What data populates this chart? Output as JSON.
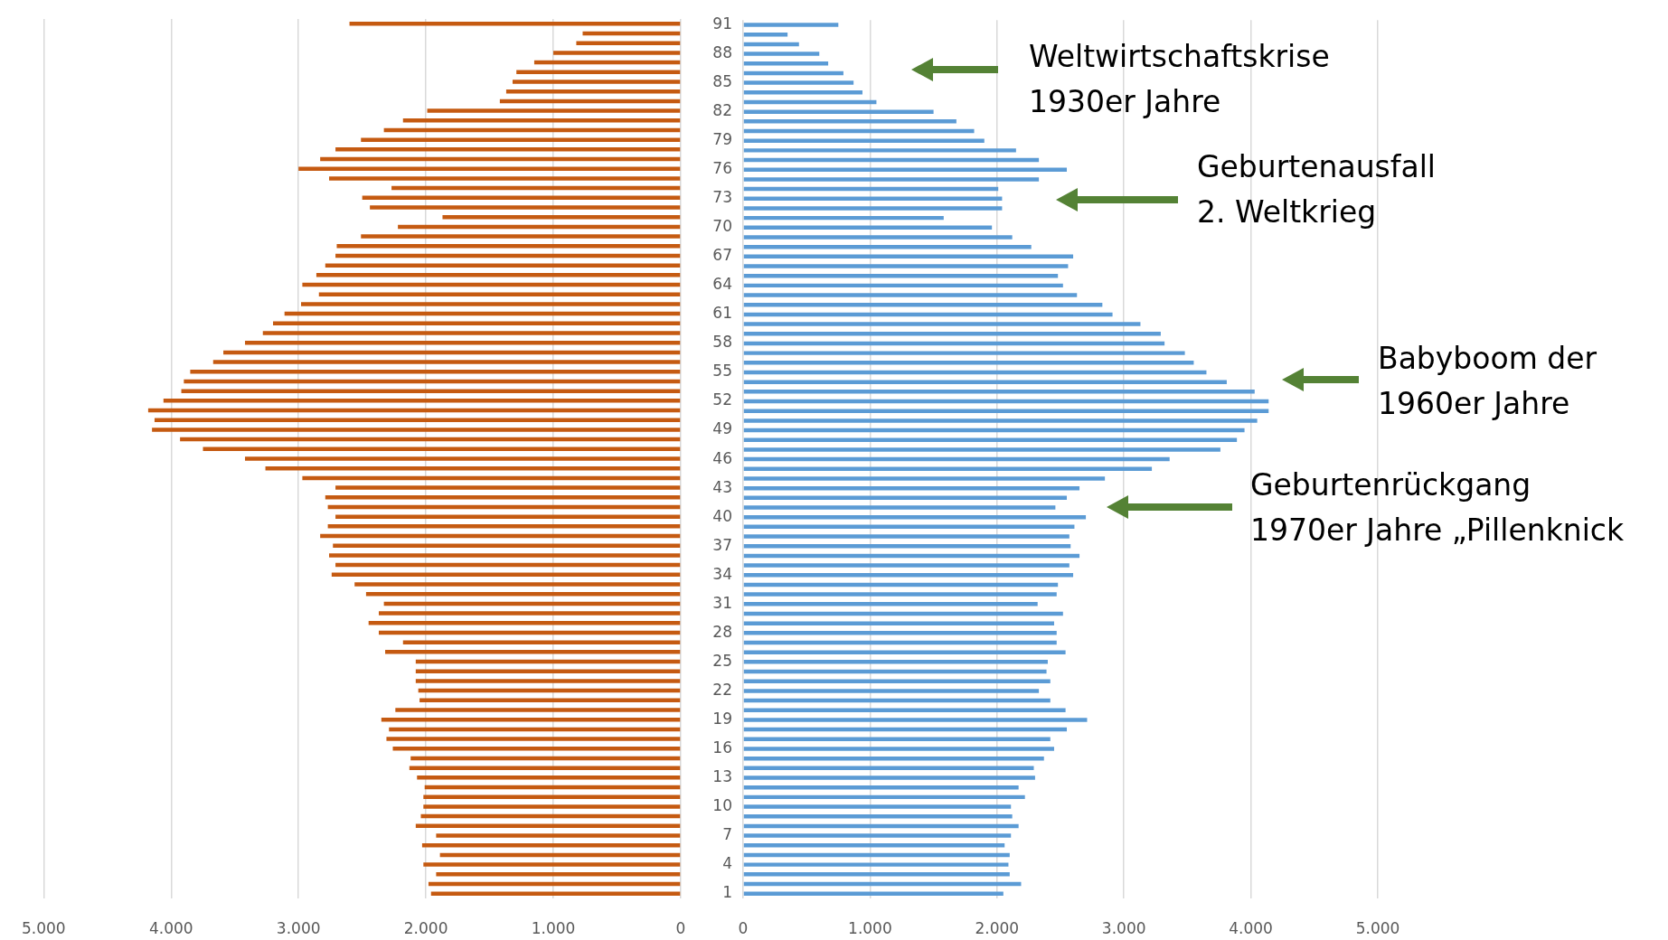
{
  "chart_data": [
    {
      "type": "bar",
      "orientation": "horizontal",
      "tick_labels": "x",
      "grid": "x",
      "color": "#c55a11",
      "categories": [
        "91",
        null,
        null,
        "88",
        null,
        null,
        "85",
        null,
        null,
        "82",
        null,
        null,
        "79",
        null,
        null,
        "76",
        null,
        null,
        "73",
        null,
        null,
        "70",
        null,
        null,
        "67",
        null,
        null,
        "64",
        null,
        null,
        "61",
        null,
        null,
        "58",
        null,
        null,
        "55",
        null,
        null,
        "52",
        null,
        null,
        "49",
        null,
        null,
        "46",
        null,
        null,
        "43",
        null,
        null,
        "40",
        null,
        null,
        "37",
        null,
        null,
        "34",
        null,
        null,
        "31",
        null,
        null,
        "28",
        null,
        null,
        "25",
        null,
        null,
        "22",
        null,
        null,
        "19",
        null,
        null,
        "16",
        null,
        null,
        "13",
        null,
        null,
        "10",
        null,
        null,
        "7",
        null,
        null,
        "4",
        null,
        null,
        "1"
      ],
      "values": [
        2600,
        770,
        820,
        1000,
        1150,
        1290,
        1320,
        1370,
        1420,
        1990,
        2180,
        2330,
        2510,
        2710,
        2830,
        3000,
        2760,
        2270,
        2500,
        2440,
        1870,
        2220,
        2510,
        2700,
        2710,
        2790,
        2860,
        2970,
        2840,
        2980,
        3110,
        3200,
        3280,
        3420,
        3590,
        3670,
        3850,
        3900,
        3920,
        4060,
        4180,
        4130,
        4150,
        3930,
        3750,
        3420,
        3260,
        2970,
        2710,
        2790,
        2770,
        2710,
        2770,
        2830,
        2730,
        2760,
        2710,
        2740,
        2560,
        2470,
        2330,
        2370,
        2450,
        2370,
        2180,
        2320,
        2080,
        2080,
        2080,
        2060,
        2050,
        2240,
        2350,
        2290,
        2310,
        2260,
        2120,
        2130,
        2070,
        2010,
        2020,
        2020,
        2040,
        2080,
        1920,
        2030,
        1890,
        2020,
        1920,
        1980,
        1960
      ],
      "xlim": [
        5000,
        0
      ],
      "xticks": [
        {
          "value": 5000,
          "label": "5.000"
        },
        {
          "value": 4000,
          "label": "4.000"
        },
        {
          "value": 3000,
          "label": "3.000"
        },
        {
          "value": 2000,
          "label": "2.000"
        },
        {
          "value": 1000,
          "label": "1.000"
        },
        0
      ]
    },
    {
      "type": "bar",
      "orientation": "horizontal",
      "grid": "x",
      "color": "#5b9bd5",
      "categories": [
        "91",
        null,
        null,
        "88",
        null,
        null,
        "85",
        null,
        null,
        "82",
        null,
        null,
        "79",
        null,
        null,
        "76",
        null,
        null,
        "73",
        null,
        null,
        "70",
        null,
        null,
        "67",
        null,
        null,
        "64",
        null,
        null,
        "61",
        null,
        null,
        "58",
        null,
        null,
        "55",
        null,
        null,
        "52",
        null,
        null,
        "49",
        null,
        null,
        "46",
        null,
        null,
        "43",
        null,
        null,
        "40",
        null,
        null,
        "37",
        null,
        null,
        "34",
        null,
        null,
        "31",
        null,
        null,
        "28",
        null,
        null,
        "25",
        null,
        null,
        "22",
        null,
        null,
        "19",
        null,
        null,
        "16",
        null,
        null,
        "13",
        null,
        null,
        "10",
        null,
        null,
        "7",
        null,
        null,
        "4",
        null,
        null,
        "1"
      ],
      "values": [
        750,
        350,
        440,
        600,
        670,
        790,
        870,
        940,
        1050,
        1500,
        1680,
        1820,
        1900,
        2150,
        2330,
        2550,
        2330,
        2010,
        2040,
        2040,
        1580,
        1960,
        2120,
        2270,
        2600,
        2560,
        2480,
        2520,
        2630,
        2830,
        2910,
        3130,
        3290,
        3320,
        3480,
        3550,
        3650,
        3810,
        4030,
        4140,
        4140,
        4050,
        3950,
        3890,
        3760,
        3360,
        3220,
        2850,
        2650,
        2550,
        2460,
        2700,
        2610,
        2570,
        2580,
        2650,
        2570,
        2600,
        2480,
        2470,
        2320,
        2520,
        2450,
        2470,
        2470,
        2540,
        2400,
        2390,
        2420,
        2330,
        2420,
        2540,
        2710,
        2550,
        2420,
        2450,
        2370,
        2290,
        2300,
        2170,
        2220,
        2110,
        2120,
        2170,
        2110,
        2060,
        2100,
        2090,
        2100,
        2190,
        2050
      ],
      "xlim": [
        0,
        5000
      ],
      "xticks": [
        0,
        {
          "value": 1000,
          "label": "1.000"
        },
        {
          "value": 2000,
          "label": "2.000"
        },
        {
          "value": 3000,
          "label": "3.000"
        },
        {
          "value": 4000,
          "label": "4.000"
        },
        {
          "value": 5000,
          "label": "5.000"
        }
      ],
      "annotations": [
        "Weltwirtschaftskrise\n1930er Jahre",
        "Geburtenausfall\n2. Weltkrieg",
        "Babyboom der\n1960er Jahre",
        "Geburtenrückgang\n1970er Jahre „Pillenknick"
      ]
    }
  ]
}
